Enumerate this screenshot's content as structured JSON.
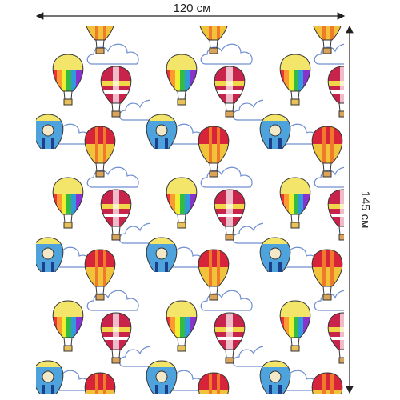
{
  "dimensions": {
    "width": "120 см",
    "height": "145 см"
  }
}
